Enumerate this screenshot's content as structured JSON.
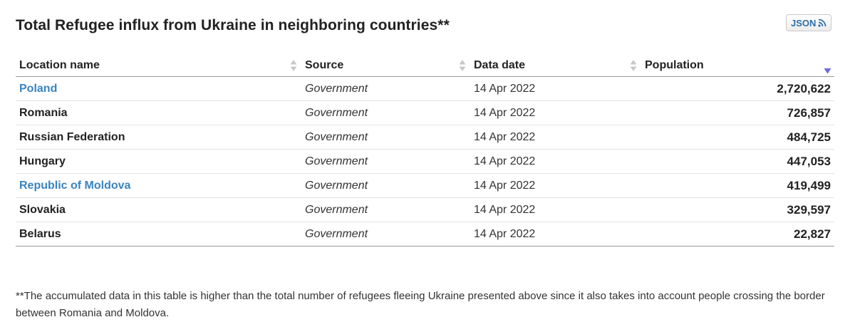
{
  "title": "Total Refugee influx from Ukraine in neighboring countries**",
  "json_button": {
    "label": "JSON",
    "icon": "rss-icon",
    "color": "#2c6fa7"
  },
  "table": {
    "columns": [
      {
        "label": "Location name",
        "sort": "none"
      },
      {
        "label": "Source",
        "sort": "none"
      },
      {
        "label": "Data date",
        "sort": "none"
      },
      {
        "label": "Population",
        "sort": "descending"
      }
    ],
    "rows": [
      {
        "location": "Poland",
        "is_link": true,
        "source": "Government",
        "date": "14 Apr 2022",
        "population": "2,720,622"
      },
      {
        "location": "Romania",
        "is_link": false,
        "source": "Government",
        "date": "14 Apr 2022",
        "population": "726,857"
      },
      {
        "location": "Russian Federation",
        "is_link": false,
        "source": "Government",
        "date": "14 Apr 2022",
        "population": "484,725"
      },
      {
        "location": "Hungary",
        "is_link": false,
        "source": "Government",
        "date": "14 Apr 2022",
        "population": "447,053"
      },
      {
        "location": "Republic of Moldova",
        "is_link": true,
        "source": "Government",
        "date": "14 Apr 2022",
        "population": "419,499"
      },
      {
        "location": "Slovakia",
        "is_link": false,
        "source": "Government",
        "date": "14 Apr 2022",
        "population": "329,597"
      },
      {
        "location": "Belarus",
        "is_link": false,
        "source": "Government",
        "date": "14 Apr 2022",
        "population": "22,827"
      }
    ]
  },
  "footnote": "**The accumulated data in this table is higher than the total number of refugees fleeing Ukraine presented above since it also takes into account people crossing the border between Romania and Moldova.",
  "colors": {
    "link": "#3a84c0",
    "sort_active": "#6a6ad8",
    "sort_inactive": "#c8c8c8"
  }
}
